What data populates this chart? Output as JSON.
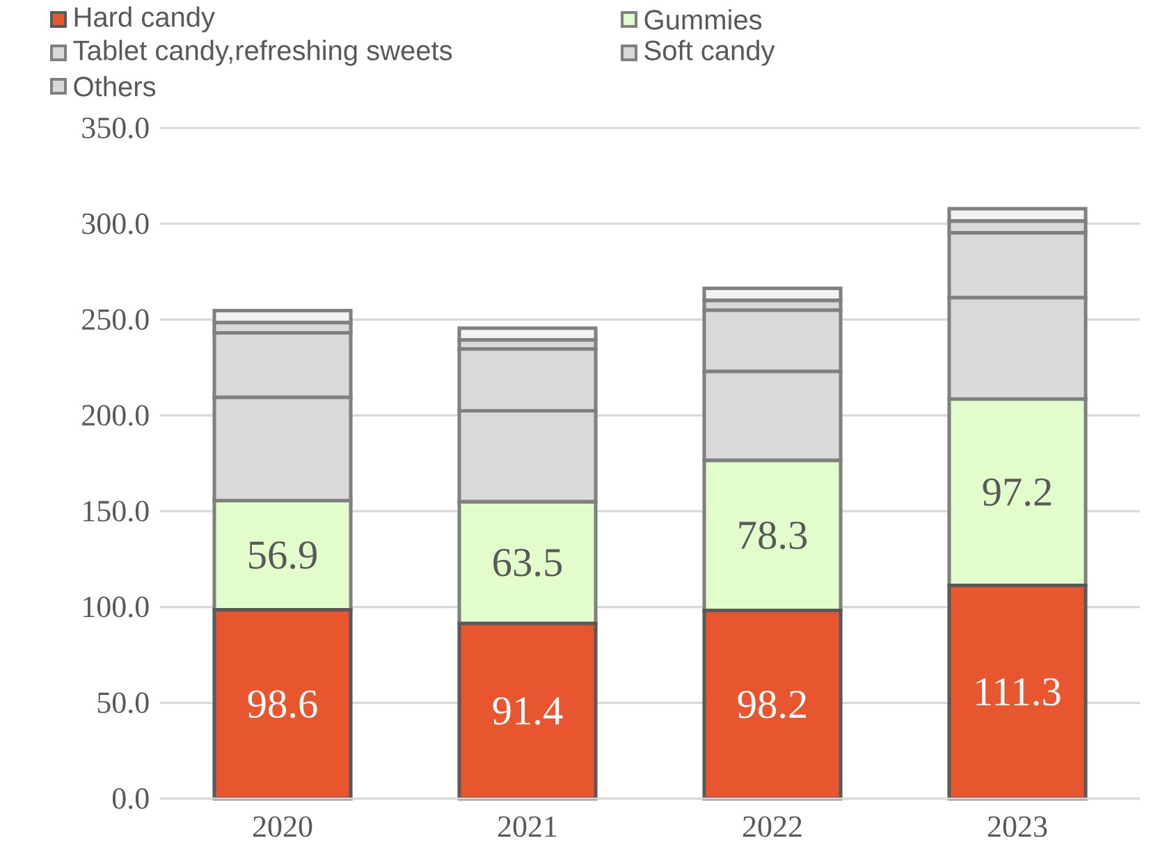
{
  "chart_data": {
    "type": "bar",
    "stacked": true,
    "categories": [
      "2020",
      "2021",
      "2022",
      "2023"
    ],
    "series": [
      {
        "name": "Hard candy",
        "color": "#e8562f",
        "values": [
          98.6,
          91.4,
          98.2,
          111.3
        ],
        "value_labels": [
          "98.6",
          "91.4",
          "98.2",
          "111.3"
        ]
      },
      {
        "name": "Gummies",
        "color": "#e2fccc",
        "values": [
          56.9,
          63.5,
          78.3,
          97.2
        ],
        "value_labels": [
          "56.9",
          "63.5",
          "78.3",
          "97.2"
        ]
      },
      {
        "name": "Tablet candy,refreshing sweets",
        "color": "#d9d9d9",
        "values": [
          53.9,
          47.5,
          46.4,
          52.9
        ]
      },
      {
        "name": "Soft candy",
        "color": "#d9d9d9",
        "values": [
          33.7,
          32.2,
          32.0,
          33.9
        ]
      },
      {
        "name": "Others",
        "color": "#d9d9d9",
        "values": [
          5.3,
          4.8,
          5.1,
          6.1
        ]
      },
      {
        "color": "#f2f2f2",
        "values": [
          6.3,
          6.1,
          6.3,
          6.5
        ]
      }
    ],
    "ylim": [
      0,
      350
    ],
    "yticks": [
      {
        "value": 0,
        "label": "0.0"
      },
      {
        "value": 50,
        "label": "50.0"
      },
      {
        "value": 100,
        "label": "100.0"
      },
      {
        "value": 150,
        "label": "150.0"
      },
      {
        "value": 200,
        "label": "200.0"
      },
      {
        "value": 250,
        "label": "250.0"
      },
      {
        "value": 300,
        "label": "300.0"
      },
      {
        "value": 350,
        "label": "350.0"
      }
    ],
    "grid": "y",
    "legend": "top left"
  }
}
